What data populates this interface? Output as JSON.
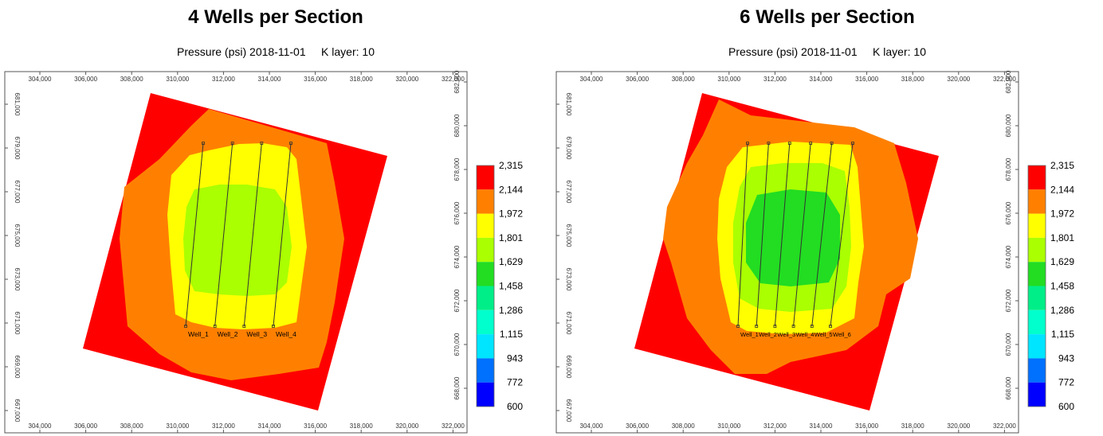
{
  "panels": [
    {
      "title": "4 Wells per Section",
      "subtitle": "Pressure (psi) 2018-11-01     K layer: 10",
      "x_ticks": [
        "304,000",
        "306,000",
        "308,000",
        "310,000",
        "312,000",
        "314,000",
        "316,000",
        "318,000",
        "320,000",
        "322,000"
      ],
      "y_ticks_left": [
        "681,000",
        "679,000",
        "677,000",
        "675,000",
        "673,000",
        "671,000",
        "669,000",
        "667,000"
      ],
      "y_ticks_right": [
        "682,000",
        "680,000",
        "678,000",
        "676,000",
        "674,000",
        "672,000",
        "670,000",
        "668,000"
      ],
      "wells": [
        "Well_1",
        "Well_2",
        "Well_3",
        "Well_4"
      ]
    },
    {
      "title": "6 Wells per Section",
      "subtitle": "Pressure (psi) 2018-11-01     K layer: 10",
      "x_ticks": [
        "304,000",
        "306,000",
        "308,000",
        "310,000",
        "312,000",
        "314,000",
        "316,000",
        "318,000",
        "320,000",
        "322,000"
      ],
      "y_ticks_left": [
        "681,000",
        "679,000",
        "677,000",
        "675,000",
        "673,000",
        "671,000",
        "669,000",
        "667,000"
      ],
      "y_ticks_right": [
        "682,000",
        "680,000",
        "678,000",
        "676,000",
        "674,000",
        "672,000",
        "670,000",
        "668,000"
      ],
      "wells": [
        "Well_1",
        "Well_2",
        "Well_3",
        "Well_4",
        "Well_5",
        "Well_6"
      ]
    }
  ],
  "legend": {
    "labels": [
      "2,315",
      "2,144",
      "1,972",
      "1,801",
      "1,629",
      "1,458",
      "1,286",
      "1,115",
      "943",
      "772",
      "600"
    ],
    "colors": [
      "#ff0000",
      "#ff8000",
      "#ffff00",
      "#aaff00",
      "#22dd22",
      "#00ee88",
      "#00ffcc",
      "#00e5ff",
      "#0070ff",
      "#0000ff"
    ]
  },
  "chart_data": [
    {
      "type": "heatmap",
      "title": "4 Wells per Section",
      "subtitle": "Pressure (psi) 2018-11-01     K layer: 10",
      "variable": "Pressure (psi)",
      "date": "2018-11-01",
      "k_layer": 10,
      "x_range": [
        303000,
        323000
      ],
      "y_range": [
        667000,
        682000
      ],
      "color_scale": [
        600,
        772,
        943,
        1115,
        1286,
        1458,
        1629,
        1801,
        1972,
        2144,
        2315
      ],
      "wells": [
        "Well_1",
        "Well_2",
        "Well_3",
        "Well_4"
      ],
      "pressure_zones": [
        "2,144-2,315 outer corners",
        "1,972-2,144 ring",
        "1,801-1,972 around wells",
        "1,629-1,801 between wells"
      ]
    },
    {
      "type": "heatmap",
      "title": "6 Wells per Section",
      "subtitle": "Pressure (psi) 2018-11-01     K layer: 10",
      "variable": "Pressure (psi)",
      "date": "2018-11-01",
      "k_layer": 10,
      "x_range": [
        303000,
        323000
      ],
      "y_range": [
        667000,
        682000
      ],
      "color_scale": [
        600,
        772,
        943,
        1115,
        1286,
        1458,
        1629,
        1801,
        1972,
        2144,
        2315
      ],
      "wells": [
        "Well_1",
        "Well_2",
        "Well_3",
        "Well_4",
        "Well_5",
        "Well_6"
      ],
      "pressure_zones": [
        "2,144-2,315 outer corners",
        "1,972-2,144 ring",
        "1,801-1,972 around wells",
        "1,629-1,801 between wells",
        "1,458-1,629 center"
      ]
    }
  ]
}
